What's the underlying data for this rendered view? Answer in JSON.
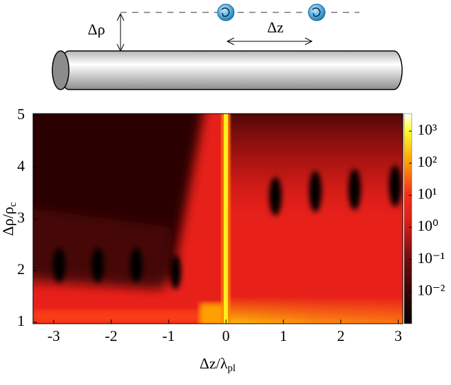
{
  "schematic": {
    "radial_label": "Δρ",
    "axial_label": "Δz"
  },
  "chart_data": {
    "type": "heatmap",
    "xlabel": {
      "text": "Δz/λ",
      "sub": "pl"
    },
    "ylabel": {
      "text": "Δρ/ρ",
      "sub": "c"
    },
    "xlim": [
      -3.36,
      3.08
    ],
    "xticks": [
      -3,
      -2,
      -1,
      0,
      1,
      2,
      3
    ],
    "ylim": [
      1,
      5
    ],
    "yticks": [
      1,
      2,
      3,
      4,
      5
    ],
    "colorbar": {
      "scale": "log",
      "clim": [
        0.001,
        3500
      ],
      "ticks": [
        {
          "value": 1000,
          "label": "10³"
        },
        {
          "value": 100,
          "label": "10²"
        },
        {
          "value": 10,
          "label": "10¹"
        },
        {
          "value": 1,
          "label": "10⁰"
        },
        {
          "value": 0.1,
          "label": "10⁻¹"
        },
        {
          "value": 0.01,
          "label": "10⁻²"
        }
      ]
    }
  }
}
